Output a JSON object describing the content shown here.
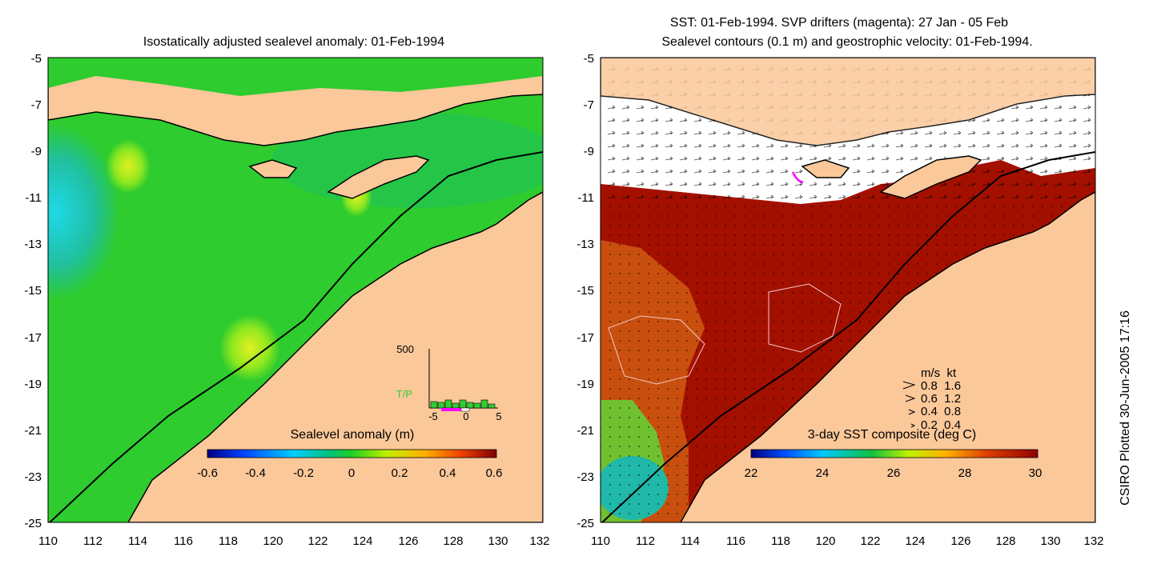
{
  "left_panel": {
    "title": "Isostatically adjusted sealevel anomaly: 01-Feb-1994",
    "colorbar": {
      "title": "Sealevel anomaly (m)",
      "tick_labels": [
        "-0.6",
        "-0.4",
        "-0.2",
        "0",
        "0.2",
        "0.4",
        "0.6"
      ]
    },
    "inset": {
      "y_label": "500",
      "series_label": "T/P",
      "x_tick_labels": [
        "-5",
        "0",
        "5"
      ]
    }
  },
  "right_panel": {
    "title_line1": "SST: 01-Feb-1994. SVP drifters (magenta): 27 Jan - 05 Feb",
    "title_line2": "Sealevel contours (0.1 m) and geostrophic velocity: 01-Feb-1994.",
    "colorbar": {
      "title": "3-day SST composite (deg C)",
      "tick_labels": [
        "22",
        "24",
        "26",
        "28",
        "30"
      ]
    },
    "velocity_legend": {
      "header": "m/s  kt",
      "rows": [
        "0.8  1.6",
        "0.6  1.2",
        "0.4  0.8",
        "0.2  0.4"
      ]
    }
  },
  "axes": {
    "y_tick_labels": [
      "-5",
      "-7",
      "-9",
      "-11",
      "-13",
      "-15",
      "-17",
      "-19",
      "-21",
      "-23",
      "-25"
    ],
    "x_tick_labels": [
      "110",
      "112",
      "114",
      "116",
      "118",
      "120",
      "122",
      "124",
      "126",
      "128",
      "130",
      "132"
    ]
  },
  "credit": "CSIRO Plotted 30-Jun-2005 17:16",
  "colors": {
    "land": "#fbc89a",
    "ocean_anomaly": "#2ecc2e",
    "ocean_sst": "#a31000",
    "cloud": "#ffffff",
    "drifter": "#ff00ff"
  }
}
